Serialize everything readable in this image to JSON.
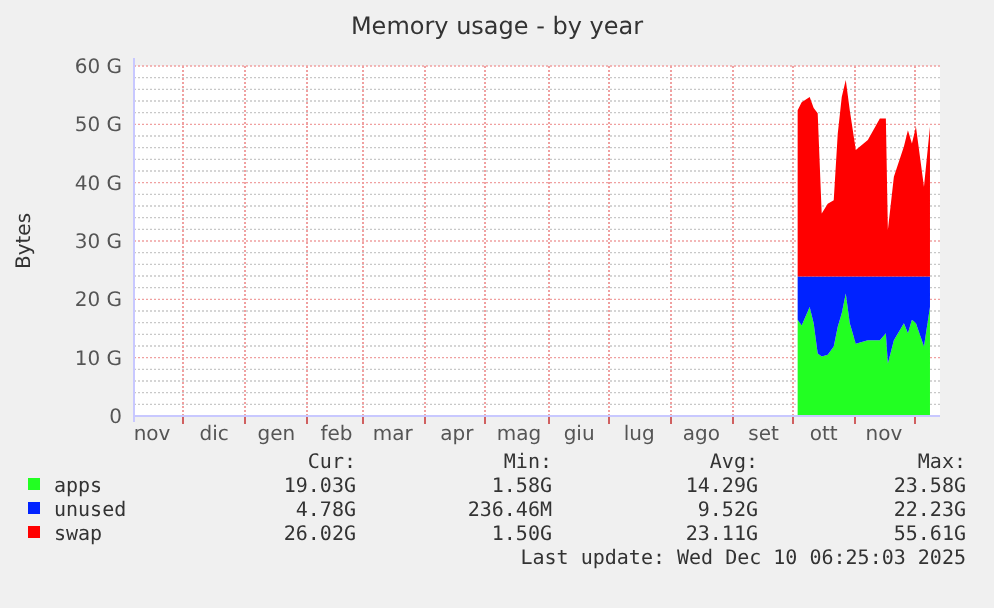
{
  "chart_data": {
    "type": "area",
    "stacked": true,
    "title": "Memory usage - by year",
    "ylabel": "Bytes",
    "x": [
      "2025-10-04",
      "2025-10-06",
      "2025-10-10",
      "2025-10-12",
      "2025-10-14",
      "2025-10-16",
      "2025-10-19",
      "2025-10-22",
      "2025-10-24",
      "2025-10-26",
      "2025-10-28",
      "2025-10-30",
      "2025-11-02",
      "2025-11-08",
      "2025-11-14",
      "2025-11-17",
      "2025-11-18",
      "2025-11-21",
      "2025-11-26",
      "2025-11-28",
      "2025-11-30",
      "2025-12-02",
      "2025-12-06",
      "2025-12-09"
    ],
    "series": [
      {
        "name": "apps",
        "color": "#22ff22",
        "values": [
          16.5,
          15.5,
          18.7,
          15.9,
          10.7,
          10.2,
          10.5,
          11.9,
          15.3,
          17.6,
          21.0,
          15.9,
          12.4,
          13.0,
          13.0,
          14.2,
          9.0,
          13.0,
          15.9,
          14.2,
          16.5,
          15.9,
          11.9,
          18.7
        ]
      },
      {
        "name": "unused",
        "color": "#0022ff",
        "values": [
          7.4,
          8.4,
          5.2,
          8.0,
          13.2,
          13.7,
          13.4,
          12.0,
          8.6,
          6.3,
          2.9,
          8.0,
          11.5,
          10.9,
          10.9,
          9.7,
          14.9,
          10.9,
          8.0,
          9.7,
          7.4,
          8.0,
          12.0,
          5.2
        ]
      },
      {
        "name": "swap",
        "color": "#ff0000",
        "values": [
          28.5,
          29.9,
          30.8,
          28.9,
          28.0,
          10.8,
          12.5,
          13.1,
          24.5,
          30.8,
          33.7,
          28.5,
          21.7,
          23.4,
          27.1,
          27.1,
          8.0,
          17.1,
          22.3,
          25.1,
          22.8,
          25.7,
          15.4,
          25.7
        ]
      }
    ],
    "xlim": [
      "2024-11-07",
      "2025-12-14"
    ],
    "xticks": [
      {
        "value": "2024-11-16",
        "label": "nov"
      },
      {
        "value": "2024-12-01",
        "label": null
      },
      {
        "value": "2024-12-17",
        "label": "dic"
      },
      {
        "value": "2025-01-01",
        "label": null
      },
      {
        "value": "2025-01-17",
        "label": "gen"
      },
      {
        "value": "2025-02-01",
        "label": null
      },
      {
        "value": "2025-02-16",
        "label": "feb"
      },
      {
        "value": "2025-03-01",
        "label": null
      },
      {
        "value": "2025-03-16",
        "label": "mar"
      },
      {
        "value": "2025-04-01",
        "label": null
      },
      {
        "value": "2025-04-17",
        "label": "apr"
      },
      {
        "value": "2025-05-01",
        "label": null
      },
      {
        "value": "2025-05-18",
        "label": "mag"
      },
      {
        "value": "2025-06-01",
        "label": null
      },
      {
        "value": "2025-06-17",
        "label": "giu"
      },
      {
        "value": "2025-07-01",
        "label": null
      },
      {
        "value": "2025-07-17",
        "label": "lug"
      },
      {
        "value": "2025-08-01",
        "label": null
      },
      {
        "value": "2025-08-17",
        "label": "ago"
      },
      {
        "value": "2025-09-01",
        "label": null
      },
      {
        "value": "2025-09-17",
        "label": "set"
      },
      {
        "value": "2025-10-01",
        "label": null
      },
      {
        "value": "2025-10-17",
        "label": "ott"
      },
      {
        "value": "2025-11-01",
        "label": null
      },
      {
        "value": "2025-11-16",
        "label": "nov"
      },
      {
        "value": "2025-12-01",
        "label": null
      }
    ],
    "ylim": [
      0,
      60
    ],
    "yticks": [
      {
        "value": 0,
        "label": "0"
      },
      {
        "value": 2,
        "label": null
      },
      {
        "value": 4,
        "label": null
      },
      {
        "value": 6,
        "label": null
      },
      {
        "value": 8,
        "label": null
      },
      {
        "value": 10,
        "label": "10 G"
      },
      {
        "value": 12,
        "label": null
      },
      {
        "value": 14,
        "label": null
      },
      {
        "value": 16,
        "label": null
      },
      {
        "value": 18,
        "label": null
      },
      {
        "value": 20,
        "label": "20 G"
      },
      {
        "value": 22,
        "label": null
      },
      {
        "value": 24,
        "label": null
      },
      {
        "value": 26,
        "label": null
      },
      {
        "value": 28,
        "label": null
      },
      {
        "value": 30,
        "label": "30 G"
      },
      {
        "value": 32,
        "label": null
      },
      {
        "value": 34,
        "label": null
      },
      {
        "value": 36,
        "label": null
      },
      {
        "value": 38,
        "label": null
      },
      {
        "value": 40,
        "label": "40 G"
      },
      {
        "value": 42,
        "label": null
      },
      {
        "value": 44,
        "label": null
      },
      {
        "value": 46,
        "label": null
      },
      {
        "value": 48,
        "label": null
      },
      {
        "value": 50,
        "label": "50 G"
      },
      {
        "value": 52,
        "label": null
      },
      {
        "value": 54,
        "label": null
      },
      {
        "value": 56,
        "label": null
      },
      {
        "value": 58,
        "label": null
      },
      {
        "value": 60,
        "label": "60 G"
      }
    ],
    "grid": true,
    "legend": "bottom left",
    "annotations": [
      "Cur:",
      "Min:",
      "Avg:",
      "Max:",
      "19.03G",
      "1.58G",
      "14.29G",
      "23.58G",
      "4.78G",
      "236.46M",
      "9.52G",
      "22.23G",
      "26.02G",
      "1.50G",
      "23.11G",
      "55.61G",
      "Last update: Wed Dec 10 06:25:03 2025"
    ]
  }
}
